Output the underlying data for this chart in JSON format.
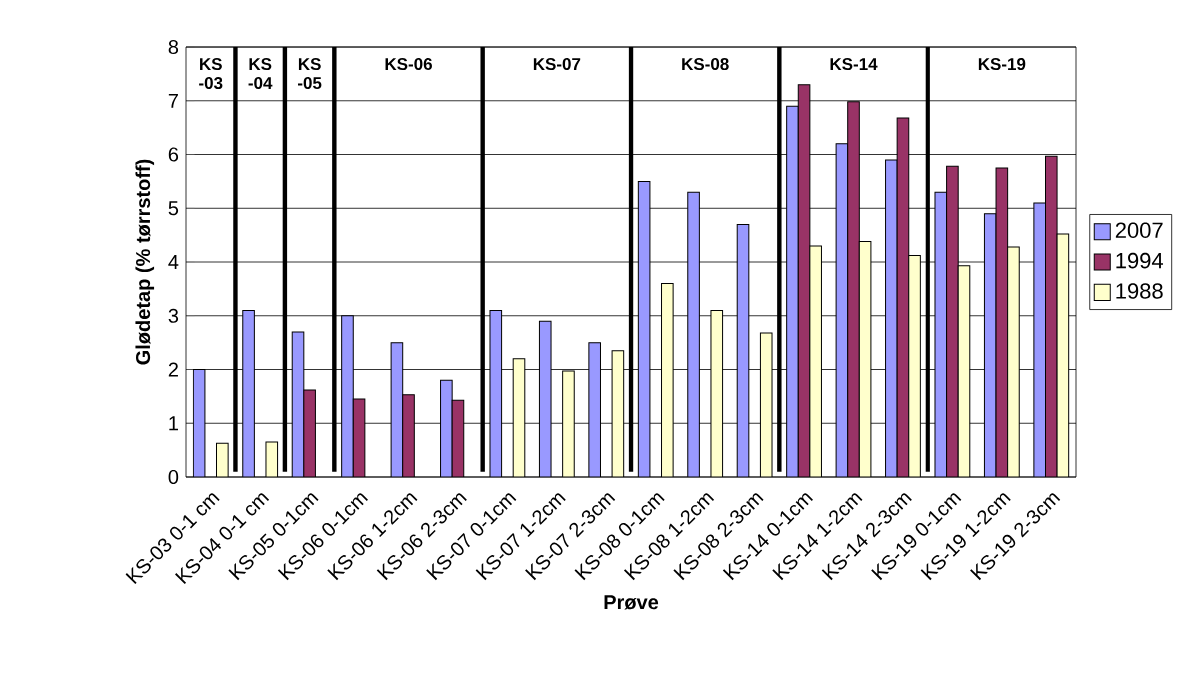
{
  "chart_data": {
    "type": "bar",
    "xlabel": "Prøve",
    "ylabel": "Glødetap (% tørrstoff)",
    "categories": [
      "KS-03 0-1 cm",
      "KS-04 0-1 cm",
      "KS-05 0-1cm",
      "KS-06 0-1cm",
      "KS-06 1-2cm",
      "KS-06 2-3cm",
      "KS-07 0-1cm",
      "KS-07 1-2cm",
      "KS-07 2-3cm",
      "KS-08 0-1cm",
      "KS-08 1-2cm",
      "KS-08 2-3cm",
      "KS-14 0-1cm",
      "KS-14 1-2cm",
      "KS-14 2-3cm",
      "KS-19 0-1cm",
      "KS-19 1-2cm",
      "KS-19 2-3cm"
    ],
    "series": [
      {
        "name": "2007",
        "color": "#9999ff",
        "values": [
          2.0,
          3.1,
          2.7,
          3.0,
          2.5,
          1.8,
          3.1,
          2.9,
          2.5,
          5.5,
          5.3,
          4.7,
          6.9,
          6.2,
          5.9,
          5.3,
          4.9,
          5.1
        ]
      },
      {
        "name": "1994",
        "color": "#993366",
        "values": [
          null,
          null,
          1.62,
          1.45,
          1.53,
          1.43,
          null,
          null,
          null,
          null,
          null,
          null,
          7.3,
          6.98,
          6.68,
          5.78,
          5.75,
          5.97
        ]
      },
      {
        "name": "1988",
        "color": "#ffffcc",
        "values": [
          0.63,
          0.65,
          null,
          null,
          null,
          null,
          2.2,
          1.97,
          2.35,
          3.6,
          3.1,
          2.68,
          4.3,
          4.38,
          4.12,
          3.93,
          4.28,
          4.52
        ]
      }
    ],
    "ylim": [
      0,
      8
    ],
    "yticks": [
      0,
      1,
      2,
      3,
      4,
      5,
      6,
      7,
      8
    ],
    "grid": "y",
    "legend": "right",
    "annotations": [
      "KS -03",
      "KS -04",
      "KS -05",
      "KS-06",
      "KS-07",
      "KS-08",
      "KS-14",
      "KS-19"
    ]
  }
}
